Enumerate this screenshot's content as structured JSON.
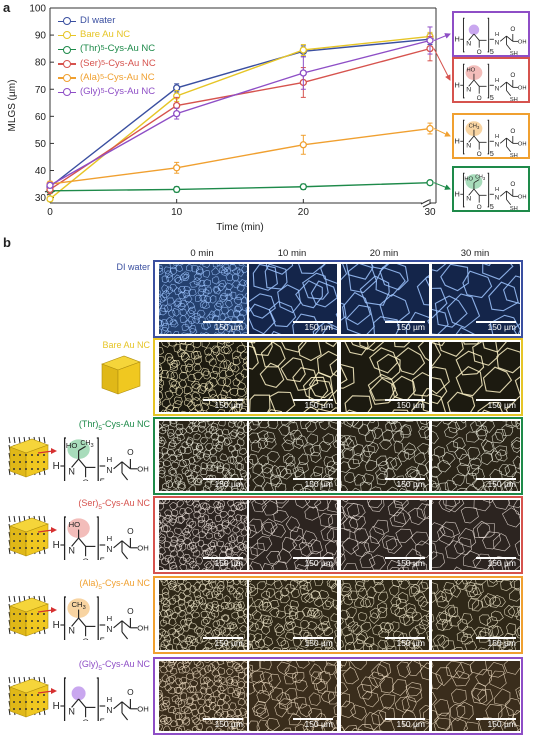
{
  "panels": {
    "a": "a",
    "b": "b"
  },
  "chart_data": {
    "type": "line",
    "xlabel": "Time (min)",
    "ylabel": "MLGS (µm)",
    "x": [
      0,
      10,
      20,
      30
    ],
    "xticks": [
      "0",
      "10",
      "20",
      "30"
    ],
    "yticks": [
      "30",
      "40",
      "50",
      "60",
      "70",
      "80",
      "90",
      "100"
    ],
    "ylim": [
      28,
      100
    ],
    "axis_break": true,
    "legend_position": "top-left",
    "series": [
      {
        "name": "DI water",
        "color": "#3a4fa0",
        "values": [
          34,
          70.5,
          84,
          88.5
        ],
        "err": [
          1,
          1.5,
          2,
          2
        ]
      },
      {
        "name": "Bare Au NC",
        "color": "#e6c526",
        "values": [
          29.5,
          67.5,
          84.5,
          89.5
        ],
        "err": [
          1,
          2,
          2,
          1.5
        ]
      },
      {
        "name": "(Thr)5-Cys-Au NC",
        "color": "#1e8a4a",
        "values": [
          32.5,
          33,
          34,
          35.5
        ],
        "err": [
          1,
          1,
          1,
          0.8
        ]
      },
      {
        "name": "(Ser)5-Cys-Au NC",
        "color": "#d6534e",
        "values": [
          33,
          64,
          72.5,
          85
        ],
        "err": [
          1.5,
          3,
          5.5,
          4.5
        ]
      },
      {
        "name": "(Ala)5-Cys-Au NC",
        "color": "#f0a030",
        "values": [
          35,
          41,
          49.5,
          55.5
        ],
        "err": [
          1,
          2,
          3.5,
          2
        ]
      },
      {
        "name": "(Gly)5-Cys-Au NC",
        "color": "#8e4ec6",
        "values": [
          34.5,
          61,
          76,
          88
        ],
        "err": [
          1,
          2,
          6,
          5
        ]
      }
    ]
  },
  "legend_parts": [
    {
      "pre": "DI water",
      "sub": "",
      "post": ""
    },
    {
      "pre": "Bare Au NC",
      "sub": "",
      "post": ""
    },
    {
      "pre": "(Thr)",
      "sub": "5",
      "post": "-Cys-Au NC"
    },
    {
      "pre": "(Ser)",
      "sub": "5",
      "post": "-Cys-Au NC"
    },
    {
      "pre": "(Ala)",
      "sub": "5",
      "post": "-Cys-Au NC"
    },
    {
      "pre": "(Gly)",
      "sub": "5",
      "post": "-Cys-Au NC"
    }
  ],
  "structure": {
    "H": "H",
    "N": "N",
    "O": "O",
    "OH": "OH",
    "SH": "SH",
    "five": "5",
    "HO": "HO",
    "CH3": "CH",
    "CH3_sub": "3"
  },
  "grid": {
    "columns": [
      "0 min",
      "10 min",
      "20 min",
      "30 min"
    ],
    "scale_label": "150 µm",
    "rows": [
      {
        "pre": "DI water",
        "sub": "",
        "post": "",
        "color": "#3a4fa0"
      },
      {
        "pre": "Bare Au NC",
        "sub": "",
        "post": "",
        "color": "#e6c526"
      },
      {
        "pre": "(Thr)",
        "sub": "5",
        "post": "-Cys-Au NC",
        "color": "#1e8a4a"
      },
      {
        "pre": "(Ser)",
        "sub": "5",
        "post": "-Cys-Au NC",
        "color": "#d6534e"
      },
      {
        "pre": "(Ala)",
        "sub": "5",
        "post": "-Cys-Au NC",
        "color": "#f0a030"
      },
      {
        "pre": "(Gly)",
        "sub": "5",
        "post": "-Cys-Au NC",
        "color": "#8e4ec6"
      }
    ]
  }
}
